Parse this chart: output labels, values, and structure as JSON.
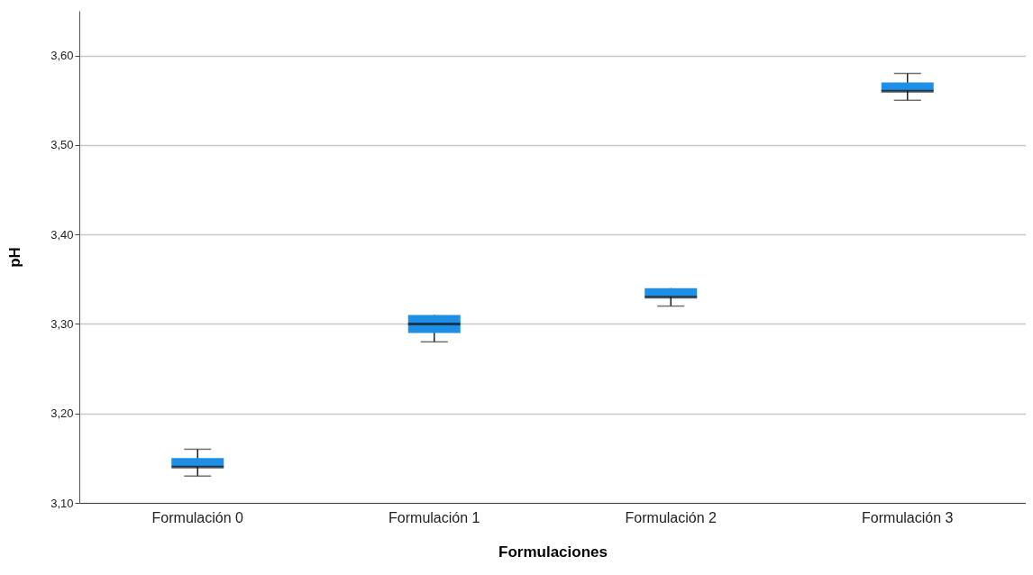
{
  "chart_data": {
    "type": "box",
    "xlabel": "Formulaciones",
    "ylabel": "pH",
    "categories": [
      "Formulación 0",
      "Formulación 1",
      "Formulación 2",
      "Formulación 3"
    ],
    "series": [
      {
        "color": "#1f8fe6",
        "boxes": [
          {
            "low": 3.13,
            "q1": 3.14,
            "median": 3.14,
            "q3": 3.15,
            "high": 3.16
          },
          {
            "low": 3.28,
            "q1": 3.29,
            "median": 3.3,
            "q3": 3.31,
            "high": 3.31
          },
          {
            "low": 3.32,
            "q1": 3.33,
            "median": 3.33,
            "q3": 3.34,
            "high": 3.34
          },
          {
            "low": 3.55,
            "q1": 3.56,
            "median": 3.56,
            "q3": 3.57,
            "high": 3.58
          }
        ]
      }
    ],
    "ylim": [
      3.1,
      3.65
    ],
    "yticks": [
      {
        "value": 3.1,
        "label": "3,10"
      },
      {
        "value": 3.2,
        "label": "3,20"
      },
      {
        "value": 3.3,
        "label": "3,30"
      },
      {
        "value": 3.4,
        "label": "3,40"
      },
      {
        "value": 3.5,
        "label": "3,50"
      },
      {
        "value": 3.6,
        "label": "3,60"
      }
    ],
    "grid": "y"
  }
}
